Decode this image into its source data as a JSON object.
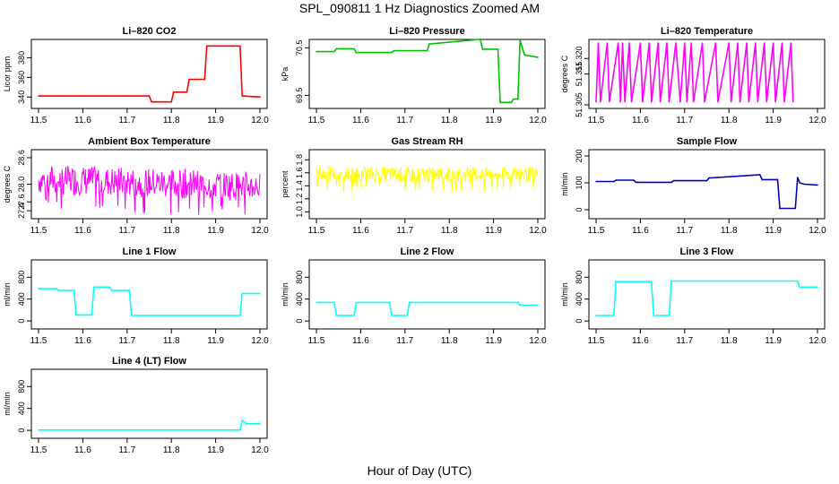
{
  "title": "SPL_090811  1 Hz Diagnostics Zoomed AM",
  "xlabel": "Hour of Day (UTC)",
  "chart_data": [
    {
      "type": "line",
      "title": "Li–820 CO2",
      "ylabel": "Licor ppm",
      "color": "#ff0000",
      "xlim": [
        11.5,
        12.0
      ],
      "ylim": [
        332,
        395
      ],
      "xticks": [
        "11.5",
        "11.6",
        "11.7",
        "11.8",
        "11.9",
        "12.0"
      ],
      "yticks": [
        "340",
        "360",
        "380"
      ],
      "series": [
        {
          "x": [
            11.5,
            11.55,
            11.6,
            11.65,
            11.7,
            11.75,
            11.755,
            11.8,
            11.805,
            11.835,
            11.84,
            11.875,
            11.88,
            11.955,
            11.96,
            12.0
          ],
          "y": [
            341,
            341,
            341,
            341,
            341,
            341,
            335,
            335,
            345,
            345,
            358,
            358,
            392,
            392,
            341,
            340
          ]
        }
      ]
    },
    {
      "type": "line",
      "title": "Li–820 Pressure",
      "ylabel": "kPa",
      "color": "#00c000",
      "xlim": [
        11.5,
        12.0
      ],
      "ylim": [
        69.3,
        70.6
      ],
      "xticks": [
        "11.5",
        "11.6",
        "11.7",
        "11.8",
        "11.9",
        "12.0"
      ],
      "yticks": [
        "69.5",
        "70.5"
      ],
      "series": [
        {
          "x": [
            11.5,
            11.54,
            11.545,
            11.585,
            11.59,
            11.67,
            11.675,
            11.75,
            11.755,
            11.87,
            11.875,
            11.91,
            11.915,
            11.94,
            11.945,
            11.955,
            11.96,
            11.97,
            12.0
          ],
          "y": [
            70.42,
            70.42,
            70.48,
            70.48,
            70.4,
            70.4,
            70.44,
            70.44,
            70.58,
            70.68,
            70.47,
            70.47,
            69.35,
            69.35,
            69.42,
            69.42,
            70.65,
            70.35,
            70.3
          ]
        }
      ]
    },
    {
      "type": "line",
      "title": "Li–820 Temperature",
      "ylabel": "degrees C",
      "color": "#ff00ff",
      "xlim": [
        11.5,
        12.0
      ],
      "ylim": [
        51.305,
        51.325
      ],
      "xticks": [
        "11.5",
        "11.6",
        "11.7",
        "11.8",
        "11.9",
        "12.0"
      ],
      "yticks": [
        "51.305",
        "51.315",
        "51.320"
      ],
      "series": [
        {
          "x": [
            11.5,
            11.505,
            11.51,
            11.525,
            11.53,
            11.55,
            11.555,
            11.56,
            11.565,
            11.575,
            11.58,
            11.6,
            11.605,
            11.62,
            11.625,
            11.64,
            11.645,
            11.66,
            11.665,
            11.68,
            11.69,
            11.7,
            11.705,
            11.715,
            11.72,
            11.74,
            11.745,
            11.77,
            11.775,
            11.8,
            11.805,
            11.82,
            11.825,
            11.84,
            11.845,
            11.86,
            11.865,
            11.88,
            11.885,
            11.9,
            11.905,
            11.92,
            11.925,
            11.94,
            11.945
          ],
          "y": [
            51.306,
            51.325,
            51.306,
            51.325,
            51.306,
            51.325,
            51.306,
            51.325,
            51.306,
            51.325,
            51.306,
            51.325,
            51.306,
            51.325,
            51.306,
            51.325,
            51.306,
            51.325,
            51.306,
            51.325,
            51.306,
            51.325,
            51.306,
            51.325,
            51.306,
            51.325,
            51.306,
            51.325,
            51.306,
            51.325,
            51.306,
            51.325,
            51.306,
            51.325,
            51.306,
            51.325,
            51.306,
            51.325,
            51.306,
            51.325,
            51.306,
            51.325,
            51.306,
            51.325,
            51.306
          ]
        }
      ]
    },
    {
      "type": "line",
      "title": "Ambient Box Temperature",
      "ylabel": "degrees C",
      "color": "#ff00ff",
      "xlim": [
        11.5,
        12.0
      ],
      "ylim": [
        27.3,
        28.7
      ],
      "xticks": [
        "11.5",
        "11.6",
        "11.7",
        "11.8",
        "11.9",
        "12.0"
      ],
      "yticks": [
        "27.4",
        "27.6",
        "28.0",
        "28.6"
      ],
      "series": [
        {
          "x": [
            11.5,
            11.6,
            11.7,
            11.8,
            11.9,
            12.0
          ],
          "y": [
            28.1,
            28.08,
            28.05,
            28.02,
            27.98,
            27.95
          ],
          "noise_low": [
            27.7,
            27.65,
            27.6,
            27.55,
            27.5,
            27.5
          ],
          "noise_high": [
            28.6,
            28.55,
            28.5,
            28.45,
            28.4,
            28.35
          ]
        }
      ]
    },
    {
      "type": "line",
      "title": "Gas Stream RH",
      "ylabel": "percent",
      "color": "#ffff00",
      "xlim": [
        11.5,
        12.0
      ],
      "ylim": [
        0.95,
        1.9
      ],
      "xticks": [
        "11.5",
        "11.6",
        "11.7",
        "11.8",
        "11.9",
        "12.0"
      ],
      "yticks": [
        "1.0",
        "1.2",
        "1.4",
        "1.6",
        "1.8"
      ],
      "series": [
        {
          "x": [
            11.5,
            11.6,
            11.7,
            11.8,
            11.9,
            12.0
          ],
          "y": [
            1.58,
            1.58,
            1.57,
            1.57,
            1.58,
            1.58
          ],
          "noise_low": [
            1.4,
            1.4,
            1.4,
            1.4,
            1.4,
            1.4
          ],
          "noise_high": [
            1.72,
            1.72,
            1.72,
            1.72,
            1.72,
            1.72
          ]
        }
      ]
    },
    {
      "type": "line",
      "title": "Sample Flow",
      "ylabel": "ml/min",
      "color": "#0000c0",
      "xlim": [
        11.5,
        12.0
      ],
      "ylim": [
        -20,
        210
      ],
      "xticks": [
        "11.5",
        "11.6",
        "11.7",
        "11.8",
        "11.9",
        "12.0"
      ],
      "yticks": [
        "0",
        "100",
        "200"
      ],
      "series": [
        {
          "x": [
            11.5,
            11.54,
            11.545,
            11.585,
            11.59,
            11.67,
            11.675,
            11.75,
            11.755,
            11.87,
            11.875,
            11.91,
            11.915,
            11.95,
            11.955,
            11.96,
            11.97,
            12.0
          ],
          "y": [
            105,
            105,
            110,
            110,
            102,
            102,
            108,
            108,
            118,
            130,
            112,
            112,
            5,
            5,
            120,
            100,
            95,
            92
          ]
        }
      ]
    },
    {
      "type": "line",
      "title": "Line 1 Flow",
      "ylabel": "ml/min",
      "color": "#00ffff",
      "xlim": [
        11.5,
        12.0
      ],
      "ylim": [
        -80,
        1050
      ],
      "xticks": [
        "11.5",
        "11.6",
        "11.7",
        "11.8",
        "11.9",
        "12.0"
      ],
      "yticks": [
        "0",
        "400",
        "800"
      ],
      "series": [
        {
          "x": [
            11.5,
            11.54,
            11.545,
            11.58,
            11.585,
            11.62,
            11.625,
            11.66,
            11.665,
            11.705,
            11.71,
            11.955,
            11.96,
            12.0
          ],
          "y": [
            590,
            590,
            560,
            560,
            110,
            110,
            620,
            620,
            560,
            560,
            100,
            100,
            500,
            500
          ]
        }
      ]
    },
    {
      "type": "line",
      "title": "Line 2 Flow",
      "ylabel": "ml/min",
      "color": "#00ffff",
      "xlim": [
        11.5,
        12.0
      ],
      "ylim": [
        -80,
        1050
      ],
      "xticks": [
        "11.5",
        "11.6",
        "11.7",
        "11.8",
        "11.9",
        "12.0"
      ],
      "yticks": [
        "0",
        "400",
        "800"
      ],
      "series": [
        {
          "x": [
            11.5,
            11.54,
            11.545,
            11.585,
            11.59,
            11.665,
            11.67,
            11.705,
            11.71,
            11.955,
            11.96,
            12.0
          ],
          "y": [
            340,
            340,
            100,
            100,
            340,
            340,
            100,
            100,
            340,
            340,
            290,
            290
          ]
        }
      ]
    },
    {
      "type": "line",
      "title": "Line 3 Flow",
      "ylabel": "ml/min",
      "color": "#00ffff",
      "xlim": [
        11.5,
        12.0
      ],
      "ylim": [
        -80,
        1050
      ],
      "xticks": [
        "11.5",
        "11.6",
        "11.7",
        "11.8",
        "11.9",
        "12.0"
      ],
      "yticks": [
        "0",
        "400",
        "800"
      ],
      "series": [
        {
          "x": [
            11.5,
            11.54,
            11.545,
            11.625,
            11.63,
            11.665,
            11.67,
            11.955,
            11.96,
            12.0
          ],
          "y": [
            100,
            100,
            720,
            720,
            100,
            100,
            730,
            730,
            620,
            620
          ]
        }
      ]
    },
    {
      "type": "line",
      "title": "Line 4 (LT) Flow",
      "ylabel": "ml/min",
      "color": "#00ffff",
      "xlim": [
        11.5,
        12.0
      ],
      "ylim": [
        -80,
        1050
      ],
      "xticks": [
        "11.5",
        "11.6",
        "11.7",
        "11.8",
        "11.9",
        "12.0"
      ],
      "yticks": [
        "0",
        "400",
        "800"
      ],
      "series": [
        {
          "x": [
            11.5,
            11.955,
            11.96,
            11.97,
            12.0
          ],
          "y": [
            5,
            5,
            180,
            120,
            120
          ]
        }
      ]
    }
  ]
}
